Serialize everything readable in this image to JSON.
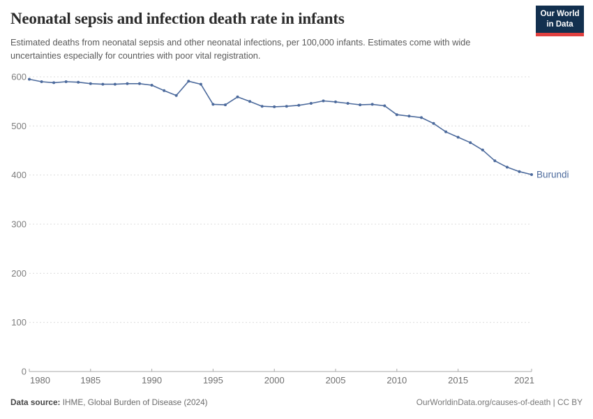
{
  "header": {
    "title": "Neonatal sepsis and infection death rate in infants",
    "subtitle": "Estimated deaths from neonatal sepsis and other neonatal infections, per 100,000 infants. Estimates come with wide uncertainties especially for countries with poor vital registration.",
    "logo": {
      "line1": "Our World",
      "line2": "in Data"
    }
  },
  "chart_data": {
    "type": "line",
    "title": "Neonatal sepsis and infection death rate in infants",
    "xlabel": "",
    "ylabel": "",
    "xlim": [
      1980,
      2021
    ],
    "ylim": [
      0,
      600
    ],
    "xticks": [
      1980,
      1985,
      1990,
      1995,
      2000,
      2005,
      2010,
      2015,
      2021
    ],
    "yticks": [
      0,
      100,
      200,
      300,
      400,
      500,
      600
    ],
    "grid": "horizontal-dashed",
    "legend_position": "end-of-line-label",
    "line_color": "#4C6A9C",
    "x": [
      1980,
      1981,
      1982,
      1983,
      1984,
      1985,
      1986,
      1987,
      1988,
      1989,
      1990,
      1991,
      1992,
      1993,
      1994,
      1995,
      1996,
      1997,
      1998,
      1999,
      2000,
      2001,
      2002,
      2003,
      2004,
      2005,
      2006,
      2007,
      2008,
      2009,
      2010,
      2011,
      2012,
      2013,
      2014,
      2015,
      2016,
      2017,
      2018,
      2019,
      2020,
      2021
    ],
    "series": [
      {
        "name": "Burundi",
        "values": [
          595,
          590,
          588,
          590,
          589,
          586,
          585,
          585,
          586,
          586,
          583,
          572,
          562,
          591,
          585,
          544,
          543,
          559,
          550,
          540,
          539,
          540,
          542,
          546,
          551,
          549,
          546,
          543,
          544,
          541,
          523,
          520,
          517,
          505,
          488,
          477,
          466,
          451,
          429,
          416,
          407,
          401
        ]
      }
    ],
    "entity_label": "Burundi"
  },
  "footer": {
    "datasource_label": "Data source:",
    "datasource_value": " IHME, Global Burden of Disease (2024)",
    "credit": "OurWorldinData.org/causes-of-death | CC BY"
  },
  "colors": {
    "line": "#4C6A9C",
    "logo_navy": "#12304f",
    "logo_red": "#e0403f",
    "gridline": "#dcdcdc",
    "axis": "#a8a8a8"
  }
}
